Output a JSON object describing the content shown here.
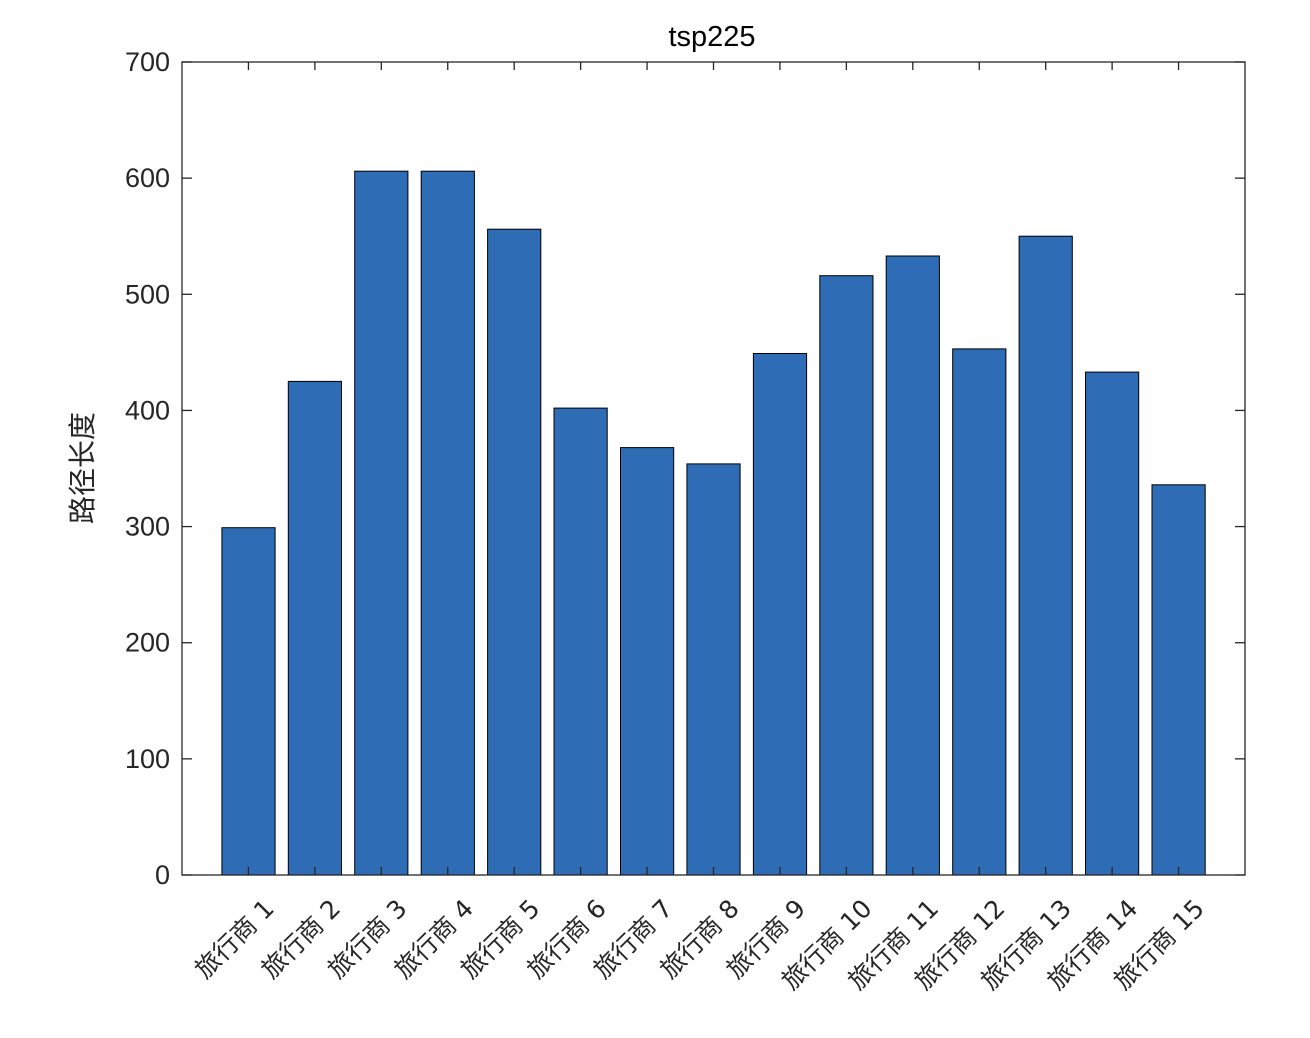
{
  "chart_data": {
    "type": "bar",
    "title": "tsp225",
    "xlabel": "",
    "ylabel": "路径长度",
    "categories": [
      "旅行商 1",
      "旅行商 2",
      "旅行商 3",
      "旅行商 4",
      "旅行商 5",
      "旅行商 6",
      "旅行商 7",
      "旅行商 8",
      "旅行商 9",
      "旅行商 10",
      "旅行商 11",
      "旅行商 12",
      "旅行商 13",
      "旅行商 14",
      "旅行商 15"
    ],
    "values": [
      299,
      425,
      606,
      606,
      556,
      402,
      368,
      354,
      449,
      516,
      533,
      453,
      550,
      433,
      336
    ],
    "ylim": [
      0,
      700
    ],
    "yticks": [
      0,
      100,
      200,
      300,
      400,
      500,
      600,
      700
    ],
    "bar_color": "#2e6cb5",
    "grid": false,
    "legend": "none"
  }
}
